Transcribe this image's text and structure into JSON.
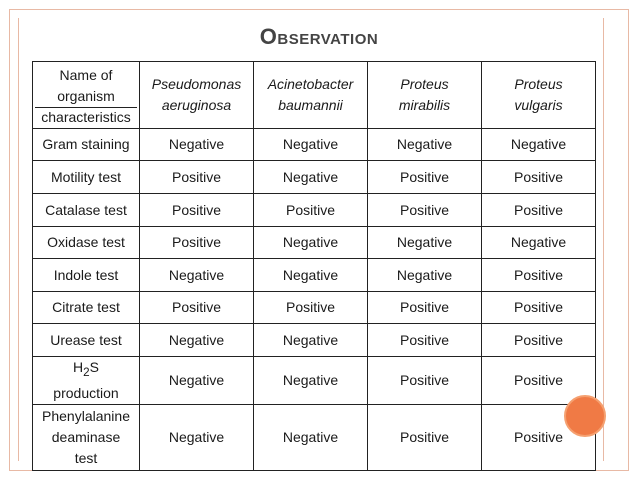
{
  "title": "Observation",
  "table": {
    "header_name": [
      "Name of",
      "organism"
    ],
    "header_characteristics": "characteristics",
    "organisms": [
      [
        "Pseudomonas",
        "aeruginosa"
      ],
      [
        "Acinetobacter",
        "baumannii"
      ],
      [
        "Proteus",
        "mirabilis"
      ],
      [
        "Proteus",
        "vulgaris"
      ]
    ],
    "rows": [
      {
        "test": "Gram staining",
        "values": [
          "Negative",
          "Negative",
          "Negative",
          "Negative"
        ]
      },
      {
        "test": "Motility test",
        "values": [
          "Positive",
          "Negative",
          "Positive",
          "Positive"
        ]
      },
      {
        "test": "Catalase test",
        "values": [
          "Positive",
          "Positive",
          "Positive",
          "Positive"
        ]
      },
      {
        "test": "Oxidase test",
        "values": [
          "Positive",
          "Negative",
          "Negative",
          "Negative"
        ]
      },
      {
        "test": "Indole test",
        "values": [
          "Negative",
          "Negative",
          "Negative",
          "Positive"
        ]
      },
      {
        "test": "Citrate test",
        "values": [
          "Positive",
          "Positive",
          "Positive",
          "Positive"
        ]
      },
      {
        "test": "Urease test",
        "values": [
          "Negative",
          "Negative",
          "Positive",
          "Positive"
        ]
      },
      {
        "test_parts": [
          "H",
          "2",
          "S",
          "production"
        ],
        "values": [
          "Negative",
          "Negative",
          "Positive",
          "Positive"
        ]
      },
      {
        "test_parts": [
          "Phenylalanine",
          "deaminase",
          "test"
        ],
        "values": [
          "Negative",
          "Negative",
          "Positive",
          "Positive"
        ]
      }
    ]
  },
  "colors": {
    "frame": "#e8b9a5",
    "accent_dot": "#f07a45",
    "title_text": "#444444"
  }
}
